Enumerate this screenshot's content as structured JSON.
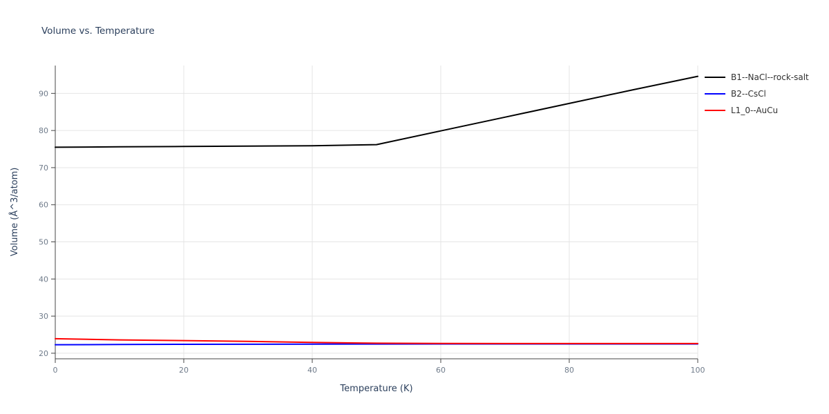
{
  "chart_data": {
    "type": "line",
    "title": "Volume vs. Temperature",
    "xlabel": "Temperature (K)",
    "ylabel": "Volume (Å^3/atom)",
    "xlim": [
      0,
      100
    ],
    "ylim": [
      18.5,
      97.5
    ],
    "xticks": [
      0,
      20,
      40,
      60,
      80,
      100
    ],
    "yticks": [
      20,
      30,
      40,
      50,
      60,
      70,
      80,
      90
    ],
    "grid": true,
    "legend_position": "top-right-outside",
    "colors": {
      "grid": "#e5e5e5",
      "axis": "#444444",
      "tick_label": "#6f7b8a",
      "title": "#2b3f5c",
      "axis_label": "#2b3f5c"
    },
    "series": [
      {
        "name": "B1--NaCl--rock-salt",
        "color": "#000000",
        "x": [
          0,
          10,
          20,
          30,
          40,
          50,
          60,
          70,
          80,
          90,
          100
        ],
        "y": [
          75.5,
          75.6,
          75.7,
          75.8,
          75.9,
          76.2,
          79.9,
          83.6,
          87.3,
          91.0,
          94.6
        ]
      },
      {
        "name": "B2--CsCl",
        "color": "#0000ff",
        "x": [
          0,
          10,
          20,
          30,
          40,
          50,
          60,
          70,
          80,
          90,
          100
        ],
        "y": [
          22.3,
          22.35,
          22.4,
          22.42,
          22.45,
          22.47,
          22.5,
          22.5,
          22.5,
          22.5,
          22.5
        ]
      },
      {
        "name": "L1_0--AuCu",
        "color": "#ff0000",
        "x": [
          0,
          10,
          20,
          30,
          40,
          50,
          60,
          70,
          80,
          90,
          100
        ],
        "y": [
          23.9,
          23.6,
          23.4,
          23.2,
          22.9,
          22.7,
          22.65,
          22.6,
          22.6,
          22.6,
          22.6
        ]
      }
    ]
  }
}
